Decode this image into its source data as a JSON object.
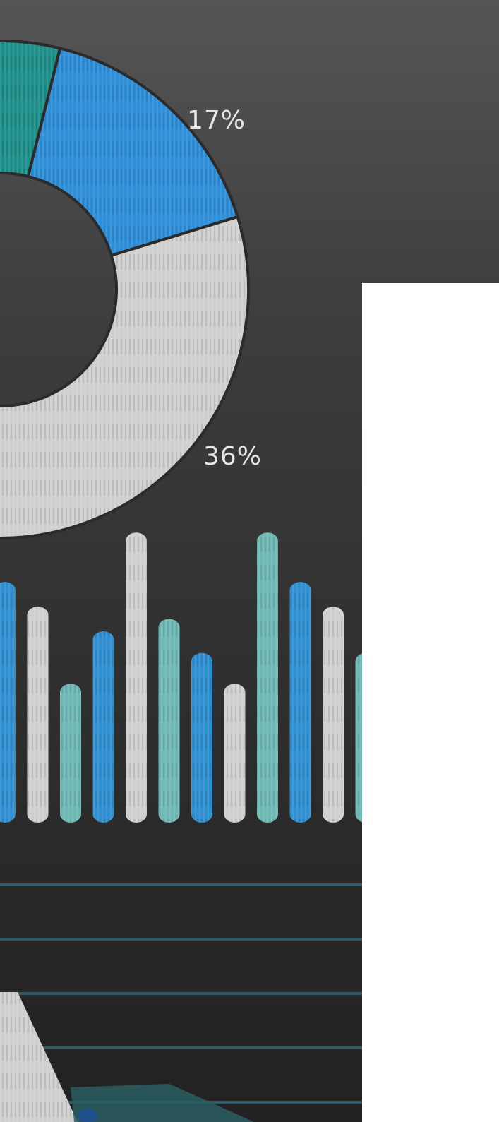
{
  "donut": {
    "labels": [
      "17%",
      "36%"
    ],
    "segments": [
      {
        "label": "",
        "color": "#1f8f8a"
      },
      {
        "label": "17%",
        "color": "#2e8fd8"
      },
      {
        "label": "36%",
        "color": "#cfcfcf"
      }
    ]
  },
  "columns": {
    "heights": [
      0.78,
      0.7,
      0.45,
      0.62,
      0.94,
      0.66,
      0.55,
      0.45,
      0.94,
      0.78,
      0.7,
      0.55
    ],
    "colors": [
      "#2f8fd0",
      "#cfcfcf",
      "#6fb8b4",
      "#2f8fd0",
      "#cfcfcf",
      "#6fb8b4",
      "#2f8fd0",
      "#cfcfcf",
      "#6fb8b4",
      "#2f8fd0",
      "#cfcfcf",
      "#6fb8b4"
    ]
  },
  "colors": {
    "board": "#2b2b2b",
    "board_light": "#4a4a4a",
    "rule_line": "#2f5a66",
    "panel": "#ffffff"
  }
}
